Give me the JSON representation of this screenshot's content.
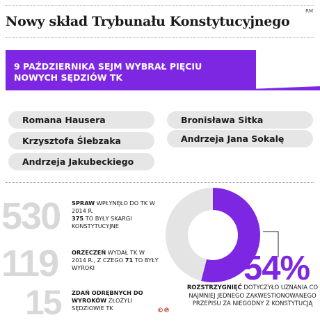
{
  "title": "Nowy skład Trybunału Konstytucyjnego",
  "credit": "RM",
  "banner": "9 PAŹDZIERNIKA SEJM WYBRAŁ PIĘCIU NOWYCH SĘDZIÓW TK",
  "judges_left": [
    "Romana Hausera",
    "Krzysztofa Ślebzaka",
    "Andrzeja Jakubeckiego"
  ],
  "judges_right": [
    "Bronisława Sitka",
    "Andrzeja Jana Sokalę"
  ],
  "stats": [
    {
      "number": "530",
      "bold1": "SPRAW",
      "text1": " WPŁYNĘŁO DO TK W 2014 R.",
      "bold2": "375",
      "text2": " TO BYŁY SKARGI KONSTYTUCYJNE"
    },
    {
      "number": "119",
      "bold1": "ORZECZEŃ",
      "text1": " WYDAŁ TK W 2014 R., Z CZEGO ",
      "bold2": "71",
      "text2": " TO BYŁY WYROKI"
    },
    {
      "number": "15",
      "bold1": "ZDAŃ ODRĘBNYCH DO WYROKÓW",
      "text1": " ZŁOŻYLI SĘDZIOWIE TK",
      "bold2": "",
      "text2": ""
    }
  ],
  "pie": {
    "percent_label": "54%",
    "value": 54,
    "caption_bold": "ROZSTRZYGNIĘĆ",
    "caption_text": " DOTYCZYŁO UZNANIA CO NAJMNIEJ JEDNEGO ZAKWESTIONOWANEGO PRZEPISU ZA NIEGODNY Z KONSTYTUCJĄ",
    "colors": {
      "value": "#7d27e3",
      "rest": "#e4e4e4"
    }
  },
  "logos": "©℗",
  "accent": "#7d27e3"
}
